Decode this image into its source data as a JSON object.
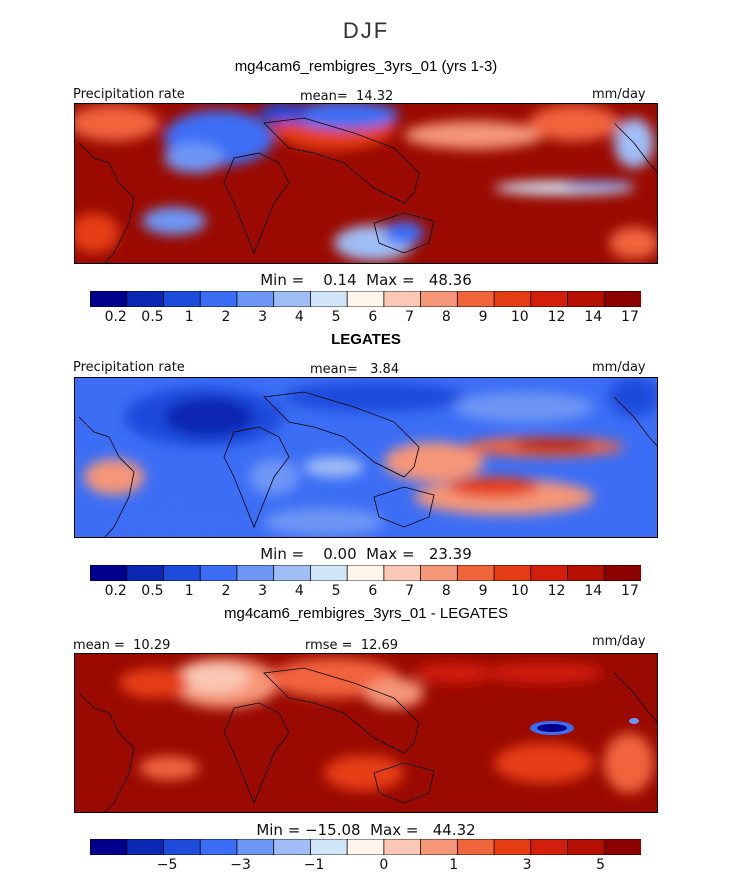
{
  "title": "DJF",
  "panels": [
    {
      "title": "mg4cam6_rembigres_3yrs_01 (yrs 1-3)",
      "left_label": "Precipitation rate",
      "center_label": "mean=  14.32",
      "right_label": "mm/day",
      "stats": "Min =    0.14  Max =   48.36"
    },
    {
      "title": "LEGATES",
      "left_label": "Precipitation rate",
      "center_label": "mean=   3.84",
      "right_label": "mm/day",
      "stats": "Min =    0.00  Max =   23.39"
    },
    {
      "title": "mg4cam6_rembigres_3yrs_01 - LEGATES",
      "left_label": "mean =  10.29",
      "center_label": "rmse =  12.69",
      "right_label": "mm/day",
      "stats": "Min = −15.08  Max =   44.32"
    }
  ],
  "colorbar_abs": {
    "colors": [
      "#00008c",
      "#0a28b4",
      "#1e4bdc",
      "#3c6ef5",
      "#6e96f5",
      "#a0bef5",
      "#d2e6fa",
      "#fff5eb",
      "#fac8b4",
      "#f59678",
      "#f0643c",
      "#e63c14",
      "#d21e0a",
      "#b40f00",
      "#8c0000"
    ],
    "labels": [
      "0.2",
      "0.5",
      "1",
      "2",
      "3",
      "4",
      "5",
      "6",
      "7",
      "8",
      "9",
      "10",
      "12",
      "14",
      "17"
    ]
  },
  "colorbar_diff": {
    "colors": [
      "#00008c",
      "#0a28b4",
      "#1e4bdc",
      "#3c6ef5",
      "#6e96f5",
      "#a0bef5",
      "#d2e6fa",
      "#fff5eb",
      "#fac8b4",
      "#f59678",
      "#f0643c",
      "#e63c14",
      "#d21e0a",
      "#b40f00",
      "#8c0000"
    ],
    "labels": [
      "−5",
      "−3",
      "−1",
      "0",
      "1",
      "3",
      "5"
    ]
  },
  "chart_data": [
    {
      "type": "heatmap",
      "title": "mg4cam6_rembigres_3yrs_01 (yrs 1-3)",
      "variable": "Precipitation rate",
      "units": "mm/day",
      "mean": 14.32,
      "min": 0.14,
      "max": 48.36,
      "colorbar_levels": [
        0.2,
        0.5,
        1,
        2,
        3,
        4,
        5,
        6,
        7,
        8,
        9,
        10,
        12,
        14,
        17
      ]
    },
    {
      "type": "heatmap",
      "title": "LEGATES",
      "variable": "Precipitation rate",
      "units": "mm/day",
      "mean": 3.84,
      "min": 0.0,
      "max": 23.39,
      "colorbar_levels": [
        0.2,
        0.5,
        1,
        2,
        3,
        4,
        5,
        6,
        7,
        8,
        9,
        10,
        12,
        14,
        17
      ]
    },
    {
      "type": "heatmap",
      "title": "mg4cam6_rembigres_3yrs_01 - LEGATES",
      "units": "mm/day",
      "mean": 10.29,
      "rmse": 12.69,
      "min": -15.08,
      "max": 44.32,
      "colorbar_levels": [
        -5,
        -3,
        -1,
        0,
        1,
        3,
        5
      ]
    }
  ]
}
